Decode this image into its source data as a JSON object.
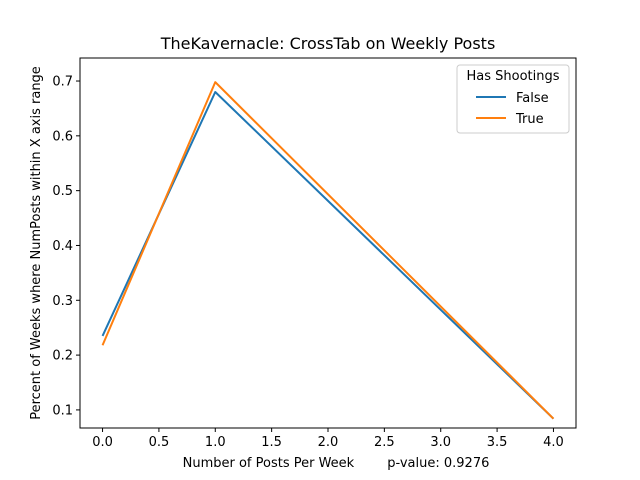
{
  "chart_data": {
    "type": "line",
    "title": "TheKavernacle: CrossTab on Weekly Posts",
    "xlabel": "Number of Posts Per Week        p-value: 0.9276",
    "ylabel": "Percent of Weeks where NumPosts within X axis range",
    "xlim": [
      -0.2,
      4.2
    ],
    "ylim": [
      0.067,
      0.742
    ],
    "xticks": [
      0.0,
      0.5,
      1.0,
      1.5,
      2.0,
      2.5,
      3.0,
      3.5,
      4.0
    ],
    "xtick_labels": [
      "0.0",
      "0.5",
      "1.0",
      "1.5",
      "2.0",
      "2.5",
      "3.0",
      "3.5",
      "4.0"
    ],
    "yticks": [
      0.1,
      0.2,
      0.3,
      0.4,
      0.5,
      0.6,
      0.7
    ],
    "ytick_labels": [
      "0.1",
      "0.2",
      "0.3",
      "0.4",
      "0.5",
      "0.6",
      "0.7"
    ],
    "x": [
      0,
      1,
      4
    ],
    "series": [
      {
        "name": "False",
        "color": "#1f77b4",
        "values": [
          0.235,
          0.68,
          0.084
        ]
      },
      {
        "name": "True",
        "color": "#ff7f0e",
        "values": [
          0.218,
          0.698,
          0.084
        ]
      }
    ],
    "legend": {
      "title": "Has Shootings",
      "placement": "top-right"
    },
    "grid": false
  }
}
